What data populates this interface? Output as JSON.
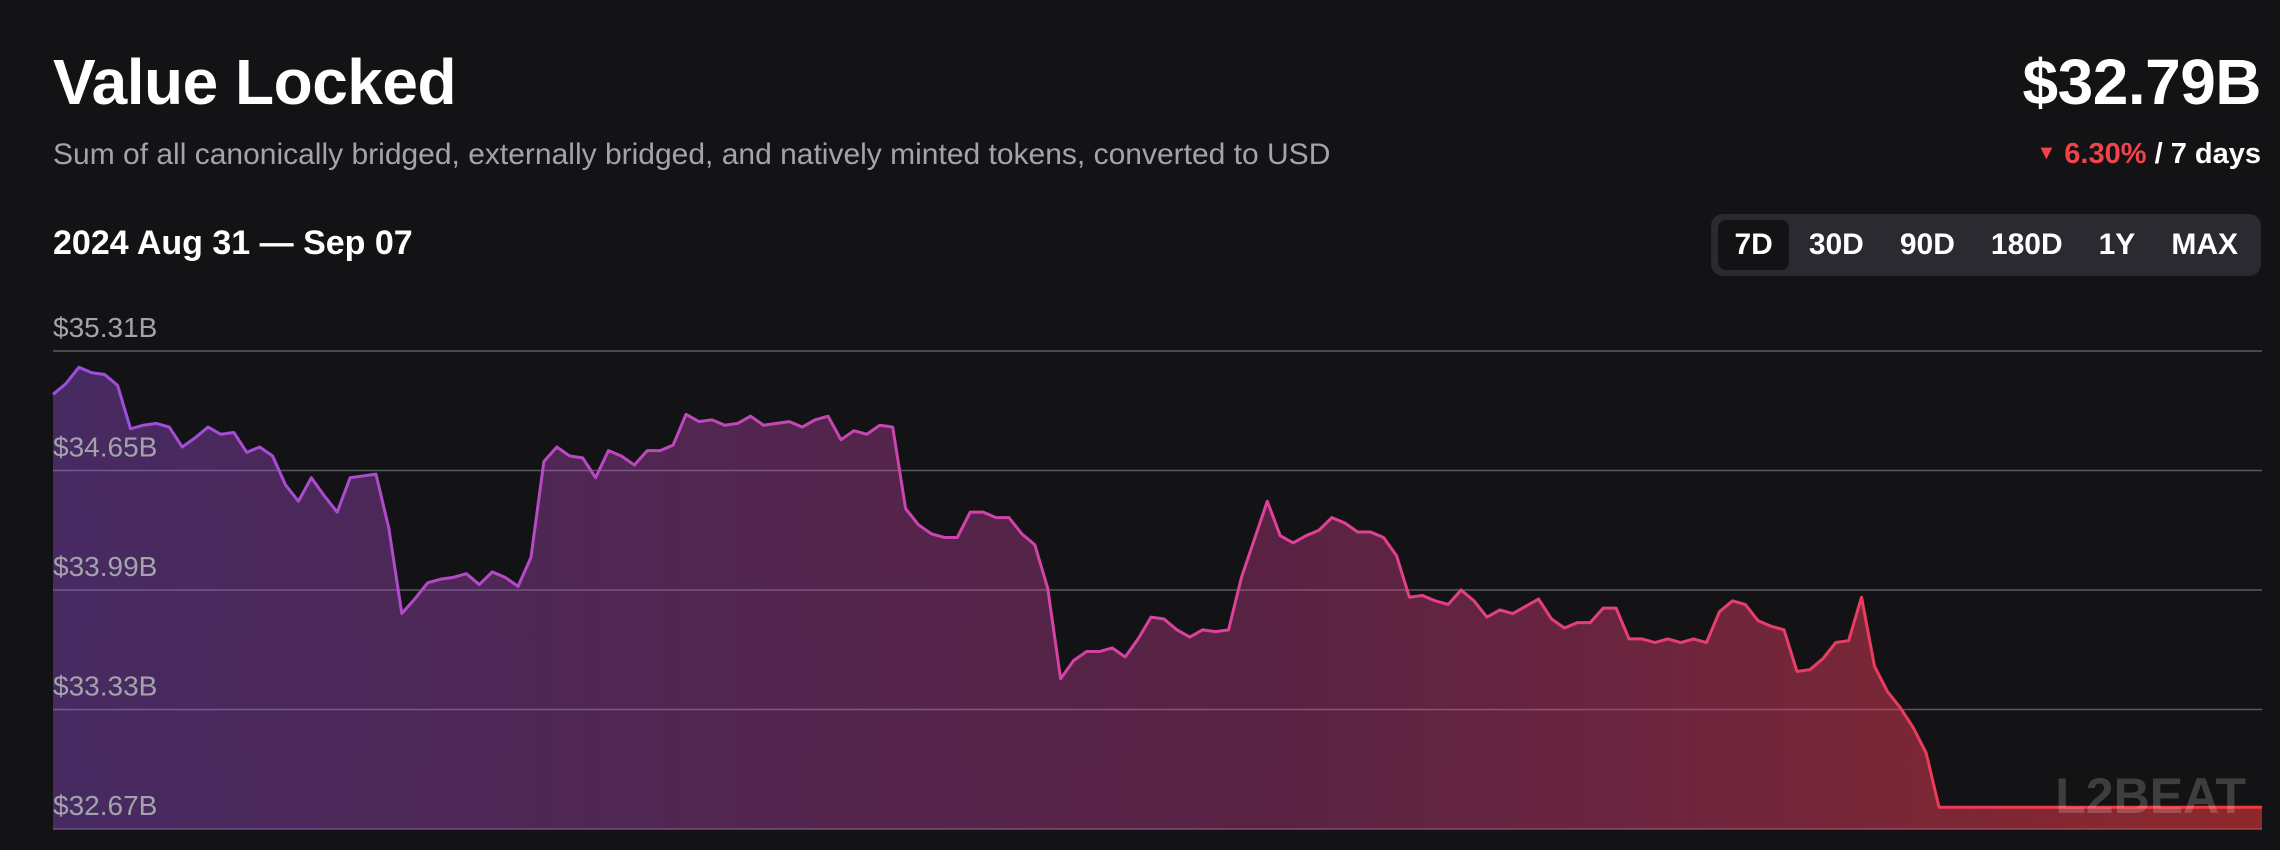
{
  "header": {
    "title": "Value Locked",
    "subtitle": "Sum of all canonically bridged, externally bridged, and natively minted tokens, converted to USD",
    "current_value": "$32.79B",
    "change_percent": "6.30%",
    "change_period": "/ 7 days",
    "change_direction": "down"
  },
  "date_range": "2024 Aug 31 — Sep 07",
  "range_tabs": [
    {
      "label": "7D",
      "active": true
    },
    {
      "label": "30D",
      "active": false
    },
    {
      "label": "90D",
      "active": false
    },
    {
      "label": "180D",
      "active": false
    },
    {
      "label": "1Y",
      "active": false
    },
    {
      "label": "MAX",
      "active": false
    }
  ],
  "watermark": "L2BEAT",
  "colors": {
    "background": "#131315",
    "gradient_start": "#9b4fe0",
    "gradient_mid": "#e0409a",
    "gradient_end": "#f23a3a",
    "negative": "#f2434a",
    "gridline": "#5a5a62"
  },
  "chart_data": {
    "type": "area",
    "title": "Value Locked",
    "xlabel": "",
    "ylabel": "",
    "x_start": "2024-08-31",
    "x_end": "2024-09-07",
    "ylim": [
      32.67,
      35.31
    ],
    "ytick_labels": [
      "$35.31B",
      "$34.65B",
      "$33.99B",
      "$33.33B",
      "$32.67B"
    ],
    "ytick_values": [
      35.31,
      34.65,
      33.99,
      33.33,
      32.67
    ],
    "grid": true,
    "legend": "none",
    "series": [
      {
        "values": [
          35.07,
          35.13,
          35.22,
          35.19,
          35.18,
          35.12,
          34.88,
          34.9,
          34.91,
          34.89,
          34.78,
          34.83,
          34.89,
          34.85,
          34.86,
          34.75,
          34.78,
          34.73,
          34.57,
          34.48,
          34.61,
          34.51,
          34.42,
          34.61,
          34.62,
          34.63,
          34.33,
          33.86,
          33.94,
          34.03,
          34.05,
          34.06,
          34.08,
          34.02,
          34.09,
          34.06,
          34.01,
          34.17,
          34.7,
          34.78,
          34.73,
          34.72,
          34.61,
          34.76,
          34.73,
          34.68,
          34.76,
          34.76,
          34.79,
          34.96,
          34.92,
          34.93,
          34.9,
          34.91,
          34.95,
          34.9,
          34.91,
          34.92,
          34.89,
          34.93,
          34.95,
          34.82,
          34.87,
          34.85,
          34.9,
          34.89,
          34.44,
          34.35,
          34.3,
          34.28,
          34.28,
          34.42,
          34.42,
          34.39,
          34.39,
          34.3,
          34.24,
          34.0,
          33.5,
          33.6,
          33.65,
          33.65,
          33.67,
          33.62,
          33.72,
          33.84,
          33.83,
          33.77,
          33.73,
          33.77,
          33.76,
          33.77,
          34.06,
          34.27,
          34.48,
          34.29,
          34.25,
          34.29,
          34.32,
          34.39,
          34.36,
          34.31,
          34.31,
          34.28,
          34.18,
          33.95,
          33.96,
          33.93,
          33.91,
          33.99,
          33.93,
          33.84,
          33.88,
          33.86,
          33.9,
          33.94,
          33.83,
          33.78,
          33.81,
          33.81,
          33.89,
          33.89,
          33.72,
          33.72,
          33.7,
          33.72,
          33.7,
          33.72,
          33.7,
          33.87,
          33.93,
          33.91,
          33.82,
          33.79,
          33.77,
          33.54,
          33.55,
          33.61,
          33.7,
          33.71,
          33.95,
          33.57,
          33.43,
          33.34,
          33.23,
          33.09,
          32.79,
          32.79,
          32.79,
          32.79,
          32.79,
          32.79,
          32.79,
          32.79,
          32.79,
          32.79,
          32.79,
          32.79,
          32.79,
          32.79,
          32.79,
          32.79,
          32.79,
          32.79,
          32.79,
          32.79,
          32.79,
          32.79,
          32.79,
          32.79,
          32.79,
          32.79
        ]
      }
    ]
  }
}
